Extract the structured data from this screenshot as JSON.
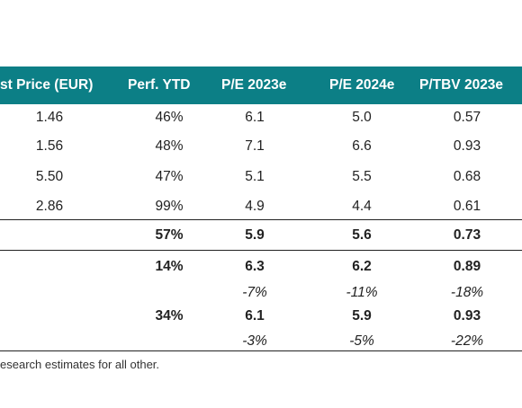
{
  "table": {
    "headers": [
      "st Price (EUR)",
      "Perf. YTD",
      "P/E 2023e",
      "P/E 2024e",
      "P/TBV 2023e"
    ],
    "header_color": "#0c7f86",
    "rows": [
      {
        "price": "1.46",
        "perf": "46%",
        "pe23": "6.1",
        "pe24": "5.0",
        "ptbv": "0.57"
      },
      {
        "price": "1.56",
        "perf": "48%",
        "pe23": "7.1",
        "pe24": "6.6",
        "ptbv": "0.93"
      },
      {
        "price": "5.50",
        "perf": "47%",
        "pe23": "5.1",
        "pe24": "5.5",
        "ptbv": "0.68"
      },
      {
        "price": "2.86",
        "perf": "99%",
        "pe23": "4.9",
        "pe24": "4.4",
        "ptbv": "0.61"
      }
    ],
    "average": {
      "perf": "57%",
      "pe23": "5.9",
      "pe24": "5.6",
      "ptbv": "0.73"
    },
    "group1": {
      "perf": "14%",
      "pe23": "6.3",
      "pe24": "6.2",
      "ptbv": "0.89"
    },
    "group1_diff": {
      "pe23": "-7%",
      "pe24": "-11%",
      "ptbv": "-18%"
    },
    "group2": {
      "perf": "34%",
      "pe23": "6.1",
      "pe24": "5.9",
      "ptbv": "0.93"
    },
    "group2_diff": {
      "pe23": "-3%",
      "pe24": "-5%",
      "ptbv": "-22%"
    }
  },
  "footnote": "esearch estimates for all other."
}
